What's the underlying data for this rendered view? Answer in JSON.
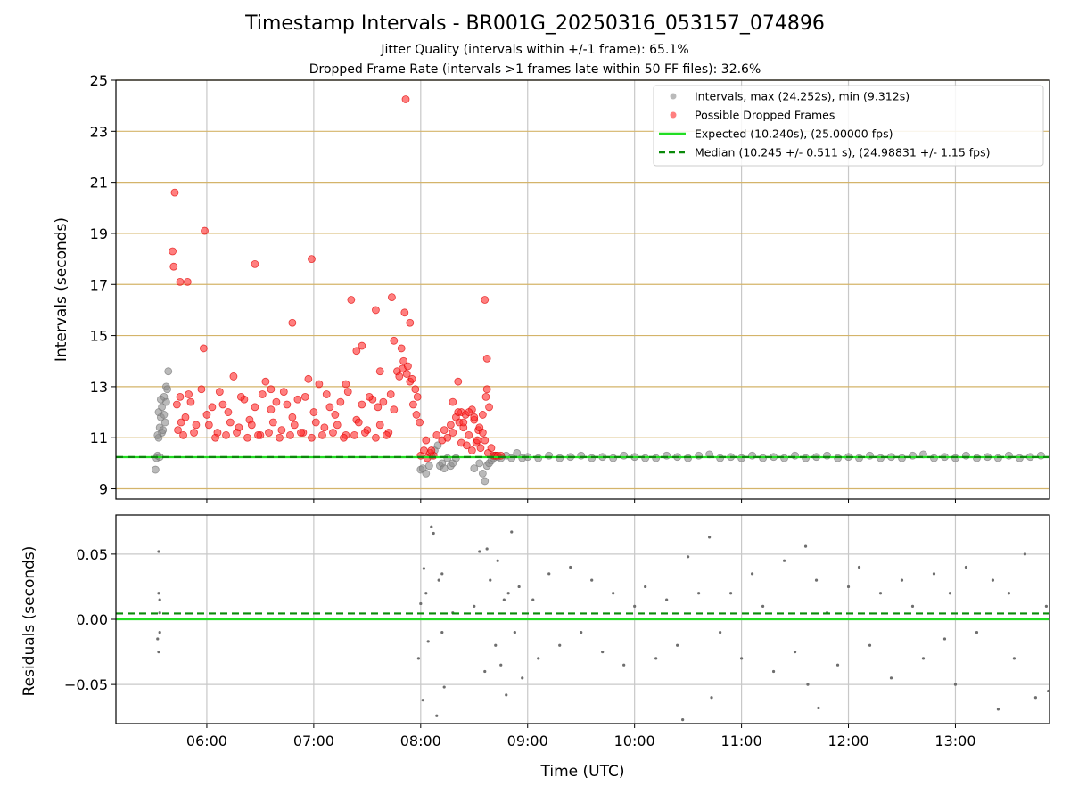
{
  "figure": {
    "title": "Timestamp Intervals - BR001G_20250316_053157_074896",
    "subtitle_1": "Jitter Quality (intervals within +/-1 frame): 65.1%",
    "subtitle_2": "Dropped Frame Rate (intervals >1 frames late within 50 FF files): 32.6%"
  },
  "chart_data": [
    {
      "type": "scatter",
      "xlabel": "",
      "ylabel": "Intervals (seconds)",
      "x_unit": "hours UTC",
      "xlim": [
        5.15,
        13.88
      ],
      "ylim": [
        8.6,
        25
      ],
      "yticks": [
        "9",
        "11",
        "13",
        "15",
        "17",
        "19",
        "21",
        "23",
        "25"
      ],
      "grid": true,
      "grid_color": "#d4b46a",
      "legend_position": "top-right",
      "legend": [
        {
          "label": "Intervals, max (24.252s), min (9.312s)",
          "kind": "dot",
          "color": "#8c8c8c"
        },
        {
          "label": "Possible Dropped Frames",
          "kind": "dot",
          "color": "#ff2a2a"
        },
        {
          "label": "Expected (10.240s), (25.00000 fps)",
          "kind": "solid",
          "color": "#22dd22"
        },
        {
          "label": "Median (10.245 +/- 0.511 s), (24.98831 +/- 1.15 fps)",
          "kind": "dashed",
          "color": "#0a8a0a"
        }
      ],
      "expected_interval": 10.24,
      "median_interval": 10.245,
      "series": [
        {
          "name": "Intervals, max (24.252s), min (9.312s)",
          "color": "#8c8c8c",
          "x": [
            5.52,
            5.53,
            5.54,
            5.55,
            5.56,
            5.57,
            5.58,
            5.6,
            5.62,
            5.64,
            5.55,
            5.58,
            5.61,
            5.63,
            5.56,
            5.59,
            5.62,
            5.54,
            5.57,
            5.6,
            8.0,
            8.02,
            8.05,
            8.08,
            8.1,
            8.13,
            8.16,
            8.18,
            8.2,
            8.22,
            8.25,
            8.28,
            8.3,
            8.33,
            8.5,
            8.55,
            8.58,
            8.6,
            8.62,
            8.64,
            8.66,
            8.68,
            8.7,
            8.72,
            8.75,
            8.8,
            8.85,
            8.9,
            8.95,
            9.0,
            9.1,
            9.2,
            9.3,
            9.4,
            9.5,
            9.6,
            9.7,
            9.8,
            9.9,
            10.0,
            10.1,
            10.2,
            10.3,
            10.4,
            10.5,
            10.6,
            10.7,
            10.8,
            10.9,
            11.0,
            11.1,
            11.2,
            11.3,
            11.4,
            11.5,
            11.6,
            11.7,
            11.8,
            11.9,
            12.0,
            12.1,
            12.2,
            12.3,
            12.4,
            12.5,
            12.6,
            12.7,
            12.8,
            12.9,
            13.0,
            13.1,
            13.2,
            13.3,
            13.4,
            13.5,
            13.6,
            13.7,
            13.8
          ],
          "y": [
            9.75,
            10.2,
            10.3,
            11.0,
            11.4,
            11.8,
            12.2,
            12.6,
            13.0,
            13.6,
            12.0,
            11.2,
            11.6,
            12.9,
            10.25,
            11.3,
            12.4,
            11.1,
            12.5,
            11.9,
            9.75,
            9.8,
            9.6,
            9.9,
            10.3,
            10.5,
            10.7,
            9.9,
            10.0,
            9.8,
            10.2,
            9.9,
            10.0,
            10.2,
            9.8,
            10.0,
            9.6,
            9.3,
            9.9,
            10.0,
            10.1,
            10.2,
            10.3,
            10.25,
            10.2,
            10.3,
            10.2,
            10.4,
            10.2,
            10.25,
            10.2,
            10.3,
            10.2,
            10.25,
            10.3,
            10.2,
            10.25,
            10.2,
            10.3,
            10.25,
            10.2,
            10.2,
            10.3,
            10.25,
            10.2,
            10.3,
            10.35,
            10.2,
            10.25,
            10.2,
            10.3,
            10.2,
            10.25,
            10.2,
            10.3,
            10.2,
            10.25,
            10.3,
            10.2,
            10.25,
            10.2,
            10.3,
            10.2,
            10.25,
            10.2,
            10.3,
            10.35,
            10.2,
            10.25,
            10.2,
            10.3,
            10.2,
            10.25,
            10.2,
            10.3,
            10.2,
            10.25,
            10.3
          ]
        },
        {
          "name": "Possible Dropped Frames",
          "color": "#ff2a2a",
          "x": [
            5.7,
            5.68,
            5.69,
            5.75,
            5.82,
            5.98,
            5.97,
            6.45,
            6.98,
            6.8,
            7.86,
            7.73,
            7.35,
            7.58,
            7.45,
            7.4,
            7.75,
            7.85,
            7.9,
            7.82,
            8.6,
            8.62,
            8.35,
            7.78,
            5.75,
            6.6,
            5.95,
            6.25,
            6.55,
            6.95,
            7.62,
            7.3,
            7.05,
            5.73,
            5.9,
            6.1,
            6.3,
            6.5,
            6.7,
            6.9,
            7.1,
            7.3,
            7.5,
            7.7,
            5.8,
            6.0,
            6.2,
            6.4,
            6.6,
            6.8,
            7.0,
            7.2,
            7.4,
            7.6,
            5.72,
            5.85,
            6.05,
            6.15,
            6.35,
            6.45,
            6.65,
            6.75,
            6.85,
            7.15,
            7.25,
            7.45,
            7.55,
            7.65,
            7.75,
            5.78,
            5.88,
            6.08,
            6.18,
            6.28,
            6.38,
            6.48,
            6.58,
            6.68,
            6.78,
            6.88,
            6.98,
            7.08,
            7.18,
            7.28,
            7.38,
            7.48,
            7.58,
            7.68,
            5.76,
            6.02,
            6.22,
            6.42,
            6.62,
            6.82,
            7.02,
            7.22,
            7.42,
            7.62,
            5.83,
            6.12,
            6.32,
            6.52,
            6.72,
            6.92,
            7.12,
            7.32,
            7.52,
            7.72,
            7.8,
            7.83,
            7.87,
            7.9,
            7.92,
            7.95,
            7.97,
            7.84,
            7.88,
            7.93,
            7.96,
            7.99,
            8.0,
            8.03,
            8.06,
            8.09,
            8.12,
            8.15,
            8.2,
            8.22,
            8.25,
            8.28,
            8.3,
            8.33,
            8.36,
            8.38,
            8.4,
            8.42,
            8.45,
            8.48,
            8.5,
            8.52,
            8.54,
            8.56,
            8.58,
            8.6,
            8.63,
            8.66,
            8.68,
            8.7,
            8.72,
            8.75,
            8.4,
            8.45,
            8.5,
            8.55,
            8.38,
            8.43,
            8.48,
            8.53,
            8.58,
            8.62,
            8.61,
            8.64,
            8.3,
            8.35,
            8.1,
            8.05
          ],
          "y": [
            20.6,
            18.3,
            17.7,
            17.1,
            17.1,
            19.1,
            14.5,
            17.8,
            18.0,
            15.5,
            24.25,
            16.5,
            16.4,
            16.0,
            14.6,
            14.4,
            14.8,
            15.9,
            15.5,
            14.5,
            16.4,
            14.1,
            13.2,
            13.6,
            12.6,
            12.9,
            12.9,
            13.4,
            13.2,
            13.3,
            13.6,
            13.1,
            13.1,
            11.3,
            11.5,
            11.2,
            11.4,
            11.1,
            11.3,
            11.2,
            11.4,
            11.1,
            11.3,
            11.2,
            11.8,
            11.9,
            12.0,
            11.7,
            12.1,
            11.8,
            12.0,
            11.9,
            11.7,
            12.2,
            12.3,
            12.4,
            12.2,
            12.3,
            12.5,
            12.2,
            12.4,
            12.3,
            12.5,
            12.2,
            12.4,
            12.3,
            12.5,
            12.4,
            12.1,
            11.1,
            11.2,
            11.0,
            11.1,
            11.2,
            11.0,
            11.1,
            11.2,
            11.0,
            11.1,
            11.2,
            11.0,
            11.1,
            11.2,
            11.0,
            11.1,
            11.2,
            11.0,
            11.1,
            11.6,
            11.5,
            11.6,
            11.5,
            11.6,
            11.5,
            11.6,
            11.5,
            11.6,
            11.5,
            12.7,
            12.8,
            12.6,
            12.7,
            12.8,
            12.6,
            12.7,
            12.8,
            12.6,
            12.7,
            13.4,
            13.7,
            13.5,
            13.2,
            13.3,
            12.9,
            12.6,
            14.0,
            13.8,
            12.3,
            11.9,
            11.6,
            10.3,
            10.5,
            10.2,
            10.4,
            10.3,
            11.1,
            10.9,
            11.3,
            11.0,
            11.5,
            11.2,
            11.8,
            11.6,
            12.0,
            11.4,
            11.9,
            11.1,
            12.1,
            11.7,
            10.8,
            11.3,
            10.6,
            11.9,
            10.9,
            10.4,
            10.6,
            10.3,
            10.3,
            10.3,
            10.3,
            11.6,
            12.0,
            11.8,
            11.4,
            10.8,
            10.7,
            10.5,
            10.9,
            11.2,
            12.9,
            12.6,
            12.2,
            12.4,
            12.0,
            10.5,
            10.9
          ]
        }
      ]
    },
    {
      "type": "scatter",
      "xlabel": "Time (UTC)",
      "ylabel": "Residuals (seconds)",
      "x_unit": "hours UTC",
      "xlim": [
        5.15,
        13.88
      ],
      "ylim": [
        -0.08,
        0.08
      ],
      "xticks": [
        {
          "value": 6,
          "label": "06:00"
        },
        {
          "value": 7,
          "label": "07:00"
        },
        {
          "value": 8,
          "label": "08:00"
        },
        {
          "value": 9,
          "label": "09:00"
        },
        {
          "value": 10,
          "label": "10:00"
        },
        {
          "value": 11,
          "label": "11:00"
        },
        {
          "value": 12,
          "label": "12:00"
        },
        {
          "value": 13,
          "label": "13:00"
        }
      ],
      "yticks": [
        "0.05",
        "0.00",
        "−0.05"
      ],
      "grid": true,
      "expected_residual": 0.0,
      "median_residual": 0.0045,
      "series": [
        {
          "name": "Residuals",
          "color": "#6e6e6e",
          "x": [
            5.55,
            5.55,
            5.56,
            5.56,
            5.54,
            5.55,
            5.56,
            7.98,
            8.0,
            8.02,
            8.03,
            8.05,
            8.07,
            8.1,
            8.12,
            8.15,
            8.17,
            8.2,
            8.2,
            8.22,
            8.3,
            8.5,
            8.55,
            8.6,
            8.62,
            8.65,
            8.7,
            8.72,
            8.75,
            8.78,
            8.8,
            8.82,
            8.85,
            8.88,
            8.92,
            8.95,
            9.05,
            9.1,
            9.2,
            9.3,
            9.4,
            9.5,
            9.6,
            9.7,
            9.8,
            9.9,
            10.0,
            10.1,
            10.2,
            10.3,
            10.4,
            10.45,
            10.5,
            10.6,
            10.7,
            10.72,
            10.8,
            10.9,
            11.0,
            11.1,
            11.2,
            11.3,
            11.4,
            11.5,
            11.6,
            11.62,
            11.7,
            11.72,
            11.8,
            11.9,
            12.0,
            12.1,
            12.2,
            12.3,
            12.4,
            12.5,
            12.6,
            12.7,
            12.8,
            12.9,
            12.95,
            13.0,
            13.1,
            13.2,
            13.35,
            13.4,
            13.5,
            13.55,
            13.65,
            13.75,
            13.85,
            13.87
          ],
          "y": [
            0.052,
            0.02,
            0.015,
            -0.01,
            -0.015,
            -0.025,
            0.005,
            -0.03,
            0.012,
            -0.062,
            0.039,
            0.02,
            -0.017,
            0.071,
            0.066,
            -0.074,
            0.03,
            -0.01,
            0.035,
            -0.052,
            0.005,
            0.01,
            0.052,
            -0.04,
            0.054,
            0.03,
            -0.02,
            0.045,
            -0.035,
            0.015,
            -0.058,
            0.02,
            0.067,
            -0.01,
            0.025,
            -0.045,
            0.015,
            -0.03,
            0.035,
            -0.02,
            0.04,
            -0.01,
            0.03,
            -0.025,
            0.02,
            -0.035,
            0.01,
            0.025,
            -0.03,
            0.015,
            -0.02,
            -0.077,
            0.048,
            0.02,
            0.063,
            -0.06,
            -0.01,
            0.02,
            -0.03,
            0.035,
            0.01,
            -0.04,
            0.045,
            -0.025,
            0.056,
            -0.05,
            0.03,
            -0.068,
            0.005,
            -0.035,
            0.025,
            0.04,
            -0.02,
            0.02,
            -0.045,
            0.03,
            0.01,
            -0.03,
            0.035,
            -0.015,
            0.02,
            -0.05,
            0.04,
            -0.01,
            0.03,
            -0.069,
            0.02,
            -0.03,
            0.05,
            -0.06,
            0.01,
            -0.055
          ]
        }
      ]
    }
  ]
}
